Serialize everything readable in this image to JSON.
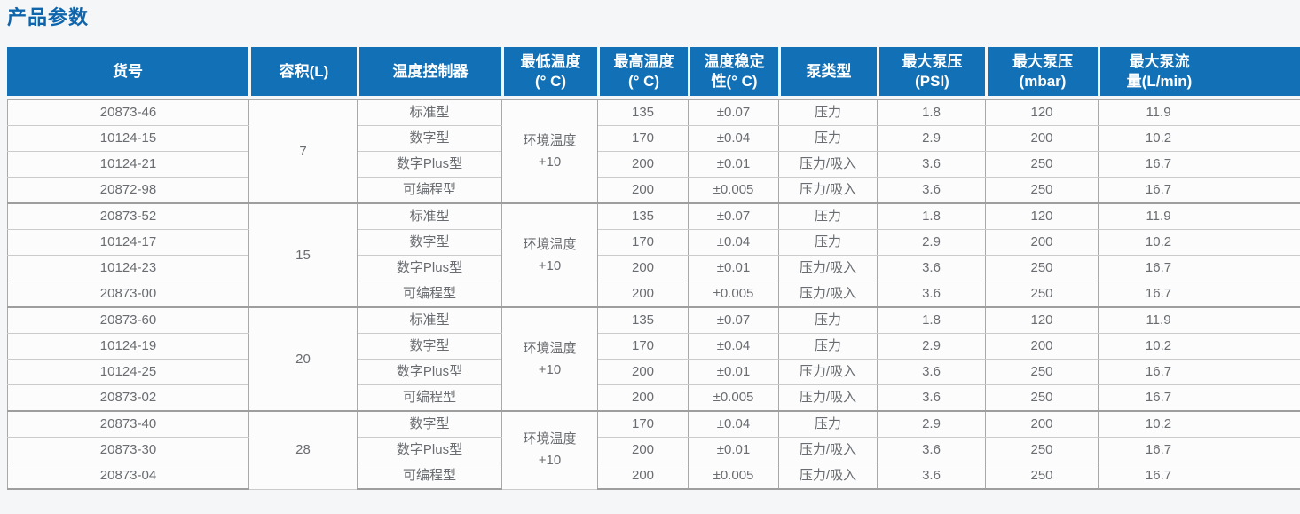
{
  "title": "产品参数",
  "colors": {
    "header_bg": "#1271b6",
    "header_text": "#ffffff",
    "title_text": "#0e65ac",
    "body_text": "#696c70",
    "border_vertical": "#a9a9a9",
    "border_row": "#cbcbcb",
    "border_group": "#9e9e9e",
    "page_bg": "#f5f6f7",
    "cell_bg": "#fcfcfc"
  },
  "table": {
    "columns": [
      {
        "id": "item_no",
        "label": "货号"
      },
      {
        "id": "volume",
        "label": "容积(L)"
      },
      {
        "id": "controller",
        "label": "温度控制器"
      },
      {
        "id": "min_temp",
        "label": "最低温度\n(° C)"
      },
      {
        "id": "max_temp",
        "label": "最高温度\n(° C)"
      },
      {
        "id": "stability",
        "label": "温度稳定\n性(° C)"
      },
      {
        "id": "pump_type",
        "label": "泵类型"
      },
      {
        "id": "max_pressure_psi",
        "label": "最大泵压\n(PSI)"
      },
      {
        "id": "max_pressure_mbar",
        "label": "最大泵压\n(mbar)"
      },
      {
        "id": "max_flow",
        "label": "最大泵流\n量(L/min)"
      }
    ],
    "groups": [
      {
        "volume": "7",
        "min_temp": "环境温度\n+10",
        "rows": [
          {
            "item_no": "20873-46",
            "controller": "标准型",
            "max_temp": "135",
            "stability": "±0.07",
            "pump_type": "压力",
            "psi": "1.8",
            "mbar": "120",
            "flow": "11.9"
          },
          {
            "item_no": "10124-15",
            "controller": "数字型",
            "max_temp": "170",
            "stability": "±0.04",
            "pump_type": "压力",
            "psi": "2.9",
            "mbar": "200",
            "flow": "10.2"
          },
          {
            "item_no": "10124-21",
            "controller": "数字Plus型",
            "max_temp": "200",
            "stability": "±0.01",
            "pump_type": "压力/吸入",
            "psi": "3.6",
            "mbar": "250",
            "flow": "16.7"
          },
          {
            "item_no": "20872-98",
            "controller": "可编程型",
            "max_temp": "200",
            "stability": "±0.005",
            "pump_type": "压力/吸入",
            "psi": "3.6",
            "mbar": "250",
            "flow": "16.7"
          }
        ]
      },
      {
        "volume": "15",
        "min_temp": "环境温度\n+10",
        "rows": [
          {
            "item_no": "20873-52",
            "controller": "标准型",
            "max_temp": "135",
            "stability": "±0.07",
            "pump_type": "压力",
            "psi": "1.8",
            "mbar": "120",
            "flow": "11.9"
          },
          {
            "item_no": "10124-17",
            "controller": "数字型",
            "max_temp": "170",
            "stability": "±0.04",
            "pump_type": "压力",
            "psi": "2.9",
            "mbar": "200",
            "flow": "10.2"
          },
          {
            "item_no": "10124-23",
            "controller": "数字Plus型",
            "max_temp": "200",
            "stability": "±0.01",
            "pump_type": "压力/吸入",
            "psi": "3.6",
            "mbar": "250",
            "flow": "16.7"
          },
          {
            "item_no": "20873-00",
            "controller": "可编程型",
            "max_temp": "200",
            "stability": "±0.005",
            "pump_type": "压力/吸入",
            "psi": "3.6",
            "mbar": "250",
            "flow": "16.7"
          }
        ]
      },
      {
        "volume": "20",
        "min_temp": "环境温度\n+10",
        "rows": [
          {
            "item_no": "20873-60",
            "controller": "标准型",
            "max_temp": "135",
            "stability": "±0.07",
            "pump_type": "压力",
            "psi": "1.8",
            "mbar": "120",
            "flow": "11.9"
          },
          {
            "item_no": "10124-19",
            "controller": "数字型",
            "max_temp": "170",
            "stability": "±0.04",
            "pump_type": "压力",
            "psi": "2.9",
            "mbar": "200",
            "flow": "10.2"
          },
          {
            "item_no": "10124-25",
            "controller": "数字Plus型",
            "max_temp": "200",
            "stability": "±0.01",
            "pump_type": "压力/吸入",
            "psi": "3.6",
            "mbar": "250",
            "flow": "16.7"
          },
          {
            "item_no": "20873-02",
            "controller": "可编程型",
            "max_temp": "200",
            "stability": "±0.005",
            "pump_type": "压力/吸入",
            "psi": "3.6",
            "mbar": "250",
            "flow": "16.7"
          }
        ]
      },
      {
        "volume": "28",
        "min_temp": "环境温度\n+10",
        "rows": [
          {
            "item_no": "20873-40",
            "controller": "数字型",
            "max_temp": "170",
            "stability": "±0.04",
            "pump_type": "压力",
            "psi": "2.9",
            "mbar": "200",
            "flow": "10.2"
          },
          {
            "item_no": "20873-30",
            "controller": "数字Plus型",
            "max_temp": "200",
            "stability": "±0.01",
            "pump_type": "压力/吸入",
            "psi": "3.6",
            "mbar": "250",
            "flow": "16.7"
          },
          {
            "item_no": "20873-04",
            "controller": "可编程型",
            "max_temp": "200",
            "stability": "±0.005",
            "pump_type": "压力/吸入",
            "psi": "3.6",
            "mbar": "250",
            "flow": "16.7"
          }
        ]
      }
    ]
  }
}
